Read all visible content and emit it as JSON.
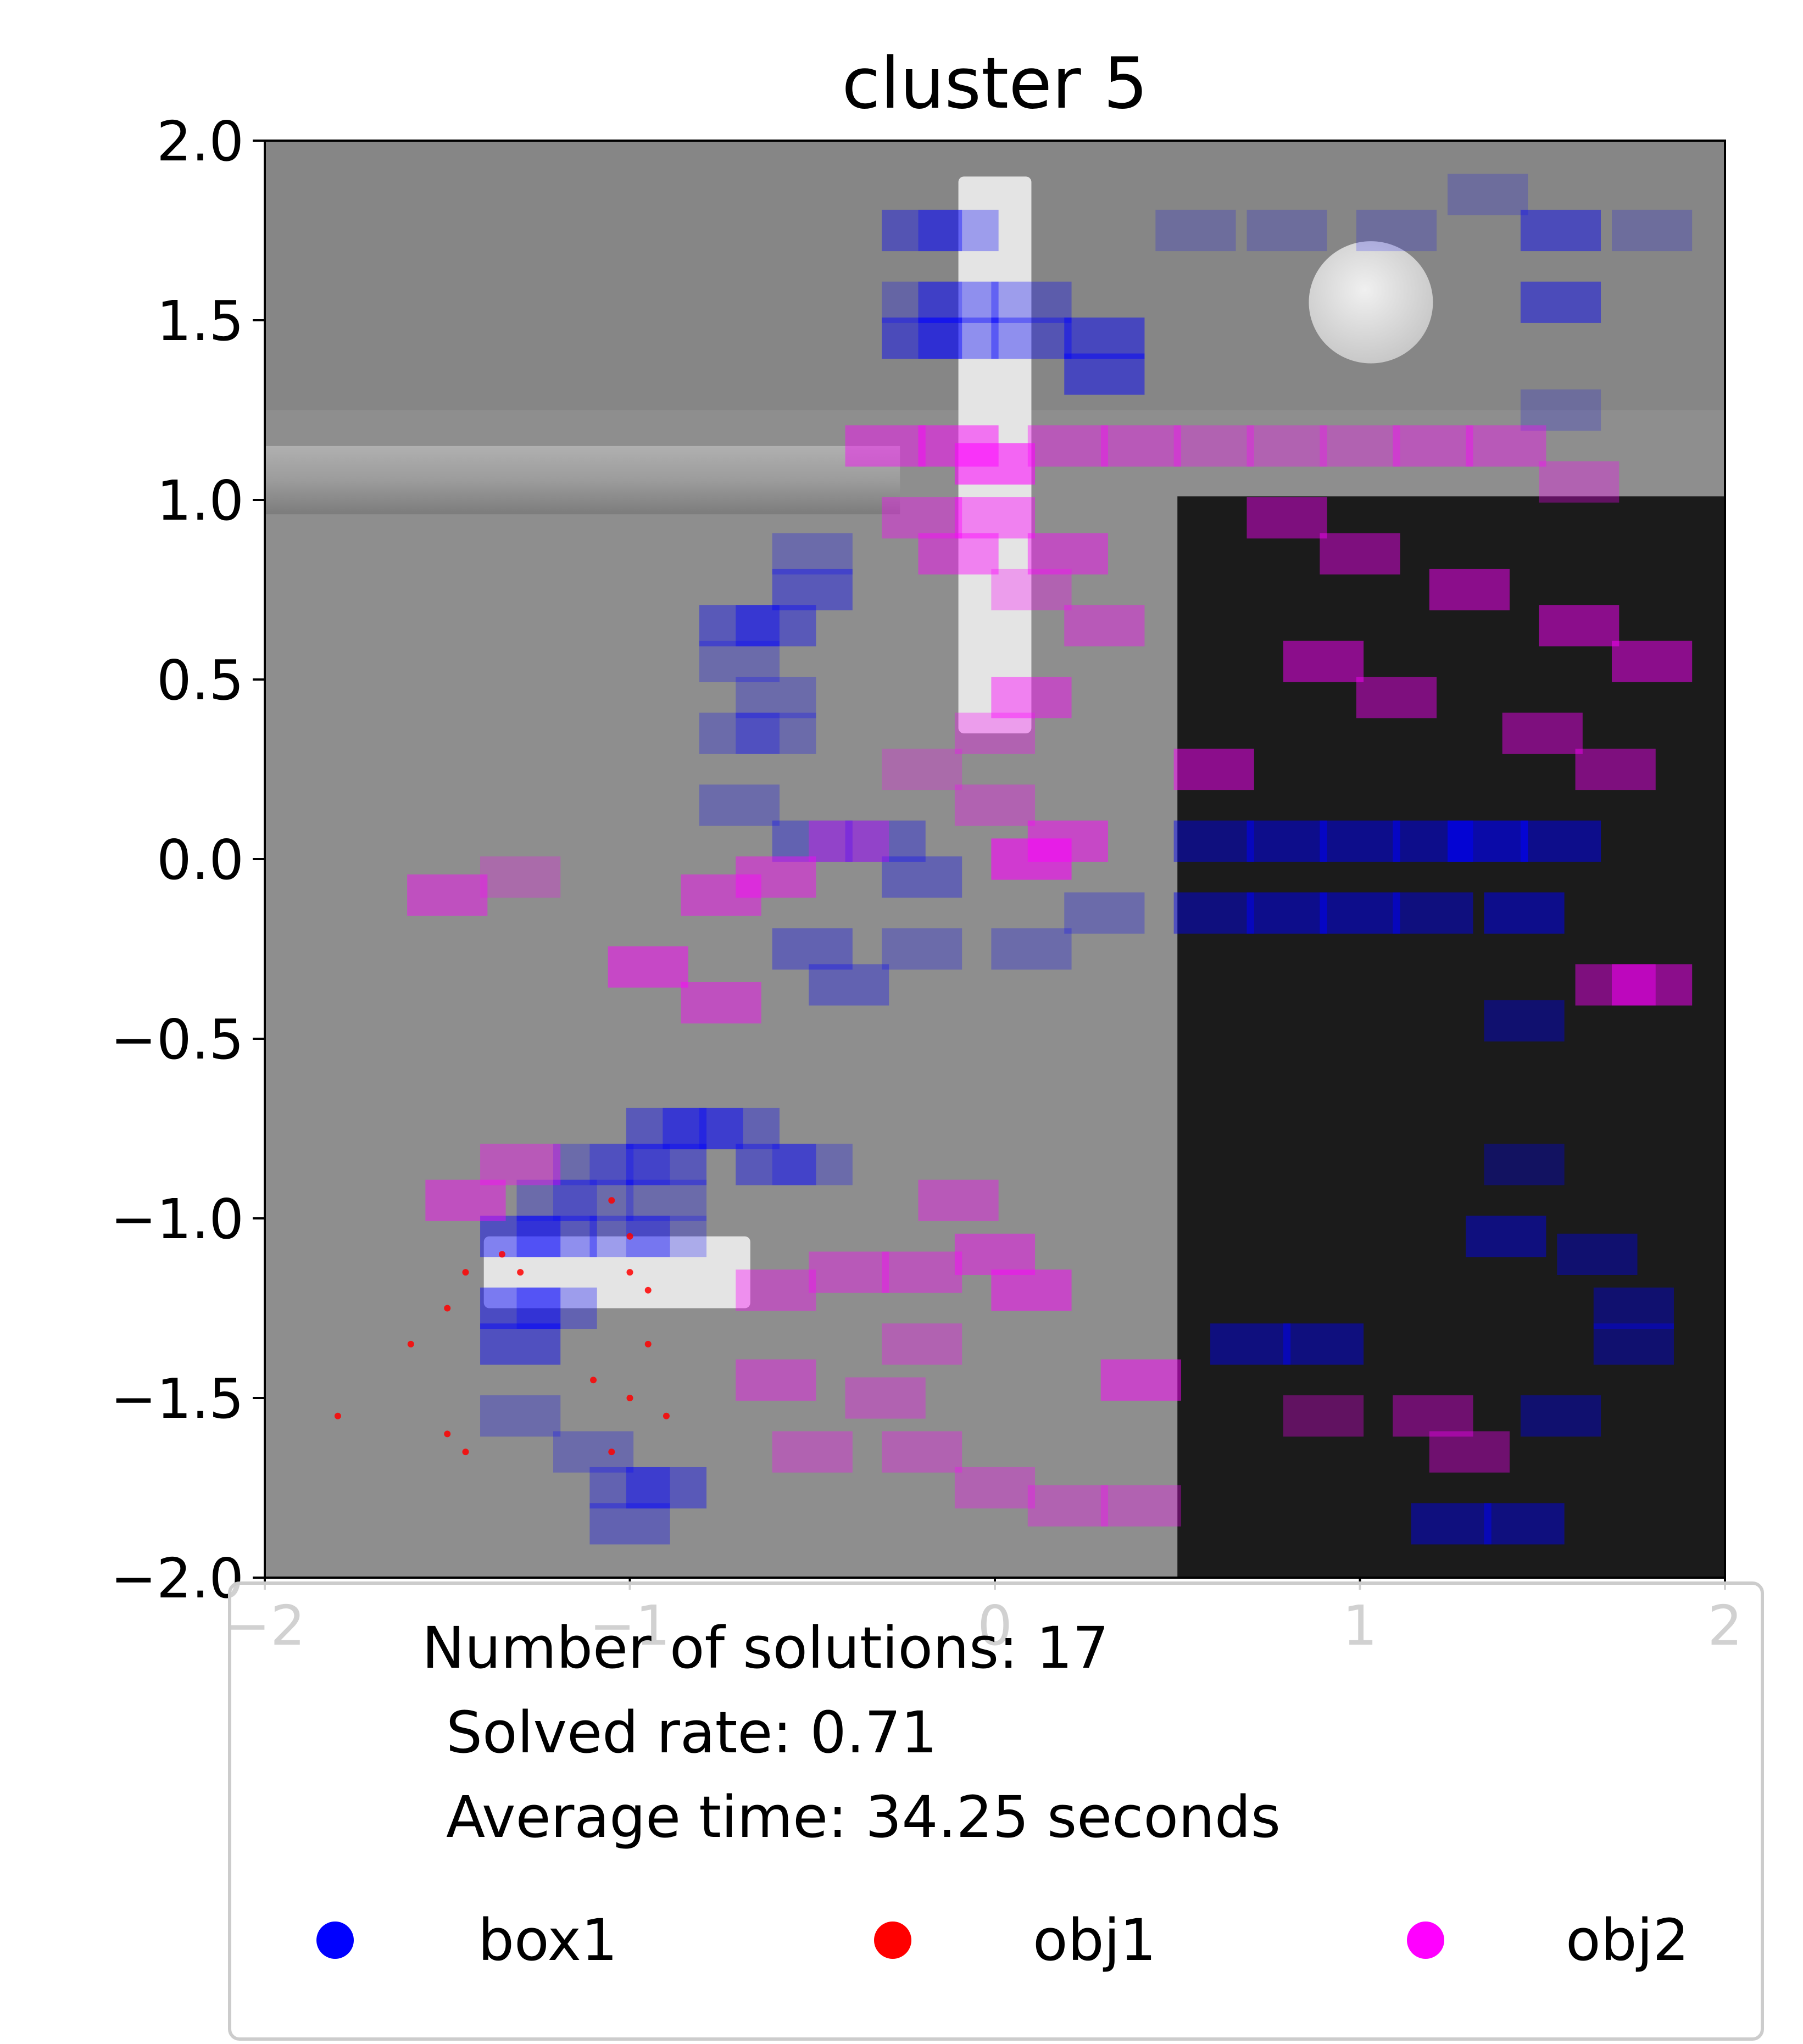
{
  "chart_data": {
    "type": "heatmap",
    "title": "cluster 5",
    "xlabel": "",
    "ylabel": "",
    "xlim": [
      -2,
      2
    ],
    "ylim": [
      -2,
      2
    ],
    "x_ticks": [
      "−2",
      "−1",
      "0",
      "1",
      "2"
    ],
    "y_ticks": [
      "2.0",
      "1.5",
      "1.0",
      "0.5",
      "0.0",
      "−0.5",
      "−1.0",
      "−1.5",
      "−2.0"
    ],
    "legend": {
      "placement": "lower center",
      "summary_lines": [
        "Number of solutions: 17",
        "Solved rate: 0.71",
        "Average time: 34.25 seconds"
      ],
      "entries": [
        {
          "label": "box1",
          "color": "#0000ff"
        },
        {
          "label": "obj1",
          "color": "#ff0000"
        },
        {
          "label": "obj2",
          "color": "#ff00ff"
        }
      ]
    },
    "series": [
      {
        "name": "box1",
        "color": "#0000ff",
        "cells": [
          [
            -0.2,
            1.75,
            0.6
          ],
          [
            -0.1,
            1.75,
            0.5
          ],
          [
            -0.2,
            1.55,
            0.4
          ],
          [
            -0.1,
            1.55,
            0.6
          ],
          [
            0.1,
            1.55,
            0.5
          ],
          [
            -0.2,
            1.45,
            0.7
          ],
          [
            -0.1,
            1.45,
            0.6
          ],
          [
            0.1,
            1.45,
            0.6
          ],
          [
            0.3,
            1.35,
            0.75
          ],
          [
            0.3,
            1.45,
            0.75
          ],
          [
            -0.5,
            0.85,
            0.4
          ],
          [
            -0.5,
            0.75,
            0.6
          ],
          [
            -0.7,
            0.65,
            0.6
          ],
          [
            -0.6,
            0.65,
            0.6
          ],
          [
            -0.7,
            0.55,
            0.4
          ],
          [
            -0.6,
            0.45,
            0.4
          ],
          [
            -0.7,
            0.35,
            0.4
          ],
          [
            -0.6,
            0.35,
            0.4
          ],
          [
            -0.7,
            0.15,
            0.4
          ],
          [
            -0.5,
            0.05,
            0.5
          ],
          [
            -0.3,
            0.05,
            0.5
          ],
          [
            -0.2,
            -0.05,
            0.5
          ],
          [
            -0.5,
            -0.25,
            0.5
          ],
          [
            -0.4,
            -0.35,
            0.5
          ],
          [
            -0.2,
            -0.25,
            0.4
          ],
          [
            0.1,
            -0.25,
            0.4
          ],
          [
            0.3,
            -0.15,
            0.4
          ],
          [
            -0.9,
            -0.75,
            0.6
          ],
          [
            -0.8,
            -0.75,
            0.6
          ],
          [
            -0.7,
            -0.75,
            0.5
          ],
          [
            -1.1,
            -0.85,
            0.4
          ],
          [
            -1.0,
            -0.85,
            0.4
          ],
          [
            -0.9,
            -0.85,
            0.6
          ],
          [
            -0.6,
            -0.85,
            0.6
          ],
          [
            -0.5,
            -0.85,
            0.4
          ],
          [
            -1.2,
            -0.95,
            0.4
          ],
          [
            -1.1,
            -0.95,
            0.4
          ],
          [
            -0.9,
            -0.95,
            0.4
          ],
          [
            -1.3,
            -1.05,
            0.7
          ],
          [
            -1.2,
            -1.05,
            0.6
          ],
          [
            -1.0,
            -1.05,
            0.5
          ],
          [
            -0.9,
            -1.05,
            0.4
          ],
          [
            -1.3,
            -1.25,
            0.75
          ],
          [
            -1.2,
            -1.25,
            0.5
          ],
          [
            -1.3,
            -1.35,
            0.7
          ],
          [
            -1.3,
            -1.55,
            0.4
          ],
          [
            -1.1,
            -1.65,
            0.4
          ],
          [
            -1.0,
            -1.75,
            0.5
          ],
          [
            -0.9,
            -1.75,
            0.6
          ],
          [
            -1.0,
            -1.85,
            0.5
          ],
          [
            0.6,
            0.05,
            0.7
          ],
          [
            0.8,
            0.05,
            0.8
          ],
          [
            1.0,
            0.05,
            0.8
          ],
          [
            1.2,
            0.05,
            0.8
          ],
          [
            1.35,
            0.05,
            1.0
          ],
          [
            1.55,
            0.05,
            0.8
          ],
          [
            0.6,
            -0.15,
            0.7
          ],
          [
            0.8,
            -0.15,
            0.8
          ],
          [
            1.0,
            -0.15,
            0.8
          ],
          [
            1.2,
            -0.15,
            0.7
          ],
          [
            1.45,
            -0.15,
            0.8
          ],
          [
            1.45,
            -0.45,
            0.6
          ],
          [
            1.45,
            -0.85,
            0.5
          ],
          [
            1.4,
            -1.05,
            0.7
          ],
          [
            1.65,
            -1.1,
            0.6
          ],
          [
            1.75,
            -1.25,
            0.6
          ],
          [
            1.75,
            -1.35,
            0.6
          ],
          [
            0.7,
            -1.35,
            0.7
          ],
          [
            0.9,
            -1.35,
            0.7
          ],
          [
            1.55,
            -1.55,
            0.6
          ],
          [
            1.25,
            -1.85,
            0.7
          ],
          [
            1.45,
            -1.85,
            0.7
          ],
          [
            1.55,
            1.75,
            0.7
          ],
          [
            1.55,
            1.55,
            0.7
          ],
          [
            1.55,
            1.25,
            0.3
          ],
          [
            1.35,
            1.85,
            0.3
          ],
          [
            0.55,
            1.75,
            0.3
          ],
          [
            0.8,
            1.75,
            0.3
          ],
          [
            1.1,
            1.75,
            0.3
          ],
          [
            1.8,
            1.75,
            0.3
          ]
        ]
      },
      {
        "name": "obj1",
        "color": "#ff0000",
        "points": [
          [
            -1.8,
            -1.55
          ],
          [
            -1.6,
            -1.35
          ],
          [
            -1.5,
            -1.25
          ],
          [
            -1.45,
            -1.15
          ],
          [
            -1.35,
            -1.1
          ],
          [
            -1.3,
            -1.15
          ],
          [
            -1.05,
            -0.95
          ],
          [
            -1.0,
            -1.05
          ],
          [
            -1.0,
            -1.15
          ],
          [
            -0.95,
            -1.2
          ],
          [
            -0.95,
            -1.35
          ],
          [
            -1.0,
            -1.5
          ],
          [
            -0.9,
            -1.55
          ],
          [
            -1.1,
            -1.45
          ],
          [
            -1.05,
            -1.65
          ],
          [
            -1.45,
            -1.65
          ],
          [
            -1.5,
            -1.6
          ]
        ]
      },
      {
        "name": "obj2",
        "color": "#ff00ff",
        "cells": [
          [
            -0.3,
            1.15,
            0.7
          ],
          [
            -0.1,
            1.15,
            0.8
          ],
          [
            0.0,
            1.1,
            0.9
          ],
          [
            0.2,
            1.15,
            0.6
          ],
          [
            0.4,
            1.15,
            0.6
          ],
          [
            0.6,
            1.15,
            0.5
          ],
          [
            0.8,
            1.15,
            0.5
          ],
          [
            1.0,
            1.15,
            0.5
          ],
          [
            1.2,
            1.15,
            0.6
          ],
          [
            1.4,
            1.15,
            0.6
          ],
          [
            1.6,
            1.05,
            0.5
          ],
          [
            -0.2,
            0.95,
            0.6
          ],
          [
            0.0,
            0.95,
            0.7
          ],
          [
            0.2,
            0.85,
            0.7
          ],
          [
            -0.1,
            0.85,
            0.7
          ],
          [
            0.1,
            0.75,
            0.5
          ],
          [
            0.3,
            0.65,
            0.6
          ],
          [
            0.1,
            0.45,
            0.7
          ],
          [
            0.0,
            0.35,
            0.5
          ],
          [
            -0.2,
            0.25,
            0.4
          ],
          [
            0.0,
            0.15,
            0.5
          ],
          [
            0.2,
            0.05,
            0.8
          ],
          [
            0.1,
            0.0,
            0.95
          ],
          [
            -0.4,
            0.05,
            0.5
          ],
          [
            -0.6,
            -0.05,
            0.7
          ],
          [
            -0.75,
            -0.1,
            0.7
          ],
          [
            -1.5,
            -0.1,
            0.7
          ],
          [
            -1.3,
            -0.05,
            0.4
          ],
          [
            -0.95,
            -0.3,
            0.8
          ],
          [
            -0.75,
            -0.4,
            0.7
          ],
          [
            -1.3,
            -0.85,
            0.6
          ],
          [
            -1.45,
            -0.95,
            0.7
          ],
          [
            -0.1,
            -0.95,
            0.6
          ],
          [
            0.0,
            -1.1,
            0.7
          ],
          [
            0.1,
            -1.2,
            0.8
          ],
          [
            -0.2,
            -1.15,
            0.6
          ],
          [
            -0.4,
            -1.15,
            0.6
          ],
          [
            -0.6,
            -1.2,
            0.6
          ],
          [
            -0.2,
            -1.35,
            0.5
          ],
          [
            -0.3,
            -1.5,
            0.5
          ],
          [
            -0.2,
            -1.65,
            0.5
          ],
          [
            0.0,
            -1.75,
            0.5
          ],
          [
            0.2,
            -1.8,
            0.5
          ],
          [
            0.4,
            -1.8,
            0.5
          ],
          [
            0.4,
            -1.45,
            0.8
          ],
          [
            0.8,
            0.95,
            0.7
          ],
          [
            1.0,
            0.85,
            0.7
          ],
          [
            1.3,
            0.75,
            0.8
          ],
          [
            1.6,
            0.65,
            0.8
          ],
          [
            1.8,
            0.55,
            0.8
          ],
          [
            0.9,
            0.55,
            0.8
          ],
          [
            1.1,
            0.45,
            0.7
          ],
          [
            1.5,
            0.35,
            0.7
          ],
          [
            0.6,
            0.25,
            0.8
          ],
          [
            1.7,
            0.25,
            0.7
          ],
          [
            1.7,
            -0.35,
            0.7
          ],
          [
            1.8,
            -0.35,
            0.8
          ],
          [
            1.3,
            -1.65,
            0.6
          ],
          [
            1.2,
            -1.55,
            0.6
          ],
          [
            0.9,
            -1.55,
            0.5
          ],
          [
            -0.6,
            -1.45,
            0.6
          ],
          [
            -0.5,
            -1.65,
            0.5
          ]
        ]
      }
    ]
  },
  "scene": {
    "colors": {
      "floor": "#8e8e8e",
      "floor_top": "#868686",
      "table": "#1b1b1b",
      "wall": "#a2a2a2",
      "white_object": "#e4e4e4"
    }
  }
}
